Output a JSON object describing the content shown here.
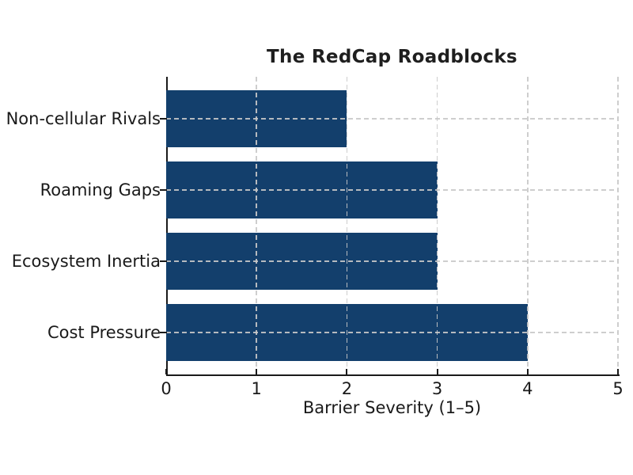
{
  "chart_data": {
    "type": "bar",
    "orientation": "horizontal",
    "title": "The RedCap Roadblocks",
    "xlabel": "Barrier Severity (1–5)",
    "ylabel": "",
    "categories": [
      "Non-cellular Rivals",
      "Roaming Gaps",
      "Ecosystem Inertia",
      "Cost Pressure"
    ],
    "values": [
      2,
      3,
      3,
      4
    ],
    "xlim": [
      0,
      5
    ],
    "xticks": [
      0,
      1,
      2,
      3,
      4,
      5
    ],
    "grid": "dashed",
    "legend": "none",
    "colors": {
      "bar": "#133F6C",
      "gridline": "#c8c8c8",
      "axis": "#1a1a1a",
      "text": "#1a1a1a",
      "background": "#ffffff"
    }
  }
}
